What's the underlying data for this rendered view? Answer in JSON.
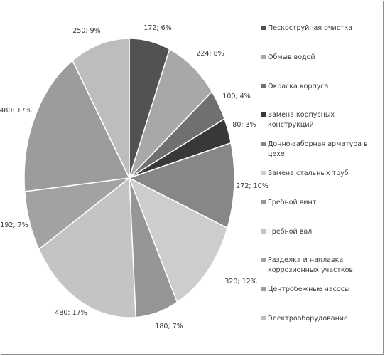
{
  "chart_data": {
    "type": "pie",
    "title": "",
    "slices": [
      {
        "name": "Пескоструйная очистка",
        "value": 172,
        "label": "172; 6%",
        "color": "#525252"
      },
      {
        "name": "Обмыв водой",
        "value": 224,
        "label": "224; 8%",
        "color": "#a8a8a8"
      },
      {
        "name": "Окраска корпуса",
        "value": 100,
        "label": "100; 4%",
        "color": "#707070"
      },
      {
        "name": "Замена корпусных конструкций",
        "value": 80,
        "label": "80; 3%",
        "color": "#383838"
      },
      {
        "name": "Донно-заборная арматура в цехе",
        "value": 272,
        "label": "272; 10%",
        "color": "#878787"
      },
      {
        "name": "Замена стальных труб",
        "value": 320,
        "label": "320; 12%",
        "color": "#cdcdcd"
      },
      {
        "name": "Гребной винт",
        "value": 180,
        "label": "180; 7%",
        "color": "#969696"
      },
      {
        "name": "Гребной вал",
        "value": 480,
        "label": "480; 17%",
        "color": "#c4c4c4"
      },
      {
        "name": "Разделка и наплавка коррозионных участков",
        "value": 192,
        "label": "192; 7%",
        "color": "#a2a2a2"
      },
      {
        "name": "Центробежные насосы",
        "value": 480,
        "label": "480; 17%",
        "color": "#9c9c9c"
      },
      {
        "name": "Электрооборудование",
        "value": 250,
        "label": "250; 9%",
        "color": "#bdbdbd"
      }
    ],
    "legend_position": "right"
  }
}
